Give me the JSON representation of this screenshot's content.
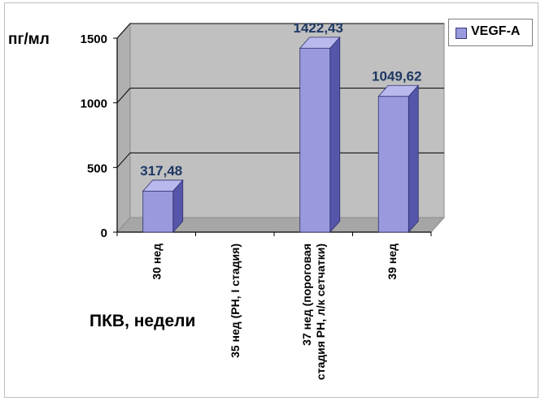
{
  "chart_data": {
    "type": "bar",
    "ylabel": "пг/мл",
    "xlabel": "ПКВ, недели",
    "categories": [
      "30 нед",
      "35 нед  (РН, I стадия)",
      "37 нед  (пороговая стадия РН, л/к сетчатки)",
      "39 нед"
    ],
    "category_lines": [
      [
        "30 нед"
      ],
      [
        "35 нед  (РН, I стадия)"
      ],
      [
        "37 нед  (пороговая",
        "стадия РН, л/к сетчатки)"
      ],
      [
        "39 нед"
      ]
    ],
    "series": [
      {
        "name": "VEGF-A",
        "values": [
          317.48,
          null,
          1422.43,
          1049.62
        ],
        "labels": [
          "317,48",
          "",
          "1422,43",
          "1049,62"
        ]
      }
    ],
    "ylim": [
      0,
      1500
    ],
    "yticks": [
      "0",
      "500",
      "1000",
      "1500"
    ],
    "grid": true,
    "legend_position": "top-right",
    "colors": {
      "bar_front": "#9999dd",
      "bar_side": "#5555aa",
      "bar_top": "#b9b9ee",
      "bar_stroke": "#2e2e70",
      "wall": "#c0c0c0",
      "floor": "#a6a6a6",
      "data_label": "#1f3864"
    }
  }
}
